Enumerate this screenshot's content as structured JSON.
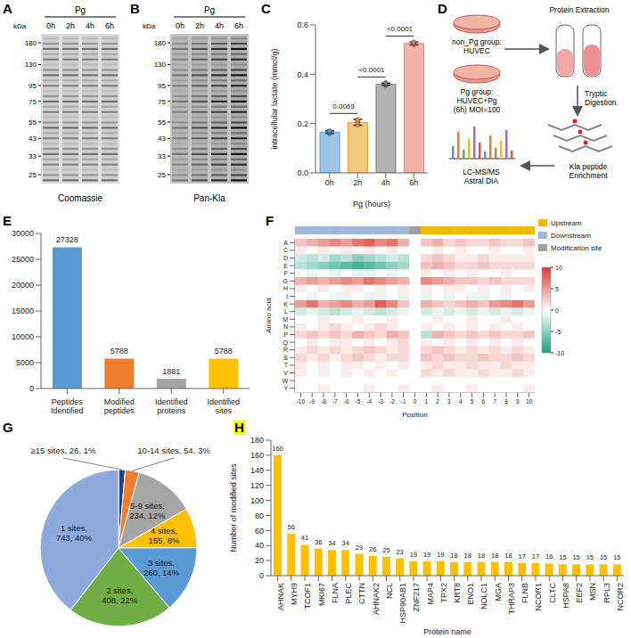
{
  "gels": [
    {
      "label": "A",
      "title": "Pg",
      "lanes": [
        "0h",
        "2h",
        "4h",
        "6h"
      ],
      "unit": "kDa",
      "markers": [
        180,
        130,
        95,
        75,
        55,
        43,
        33,
        25
      ],
      "caption": "Coomassie"
    },
    {
      "label": "B",
      "title": "Pg",
      "lanes": [
        "0h",
        "2h",
        "4h",
        "6h"
      ],
      "unit": "kDa",
      "markers": [
        180,
        130,
        95,
        75,
        55,
        43,
        33,
        25
      ],
      "caption": "Pan-Kla"
    }
  ],
  "diagram": {
    "label": "D",
    "nodes": [
      {
        "lines": [
          "non_Pg group:",
          "HUVEC"
        ]
      },
      {
        "lines": [
          "Pg group:",
          "HUVEC+Pg",
          "(6h) MOI=100"
        ]
      },
      {
        "lines": [
          "Protein Extraction"
        ]
      },
      {
        "lines": [
          "Tryptic",
          "Digestion"
        ]
      },
      {
        "lines": [
          "Kla peptide",
          "Enrichment"
        ]
      },
      {
        "lines": [
          "LC-MS/MS",
          "Astral DIA"
        ]
      }
    ]
  },
  "chart_data": [
    {
      "label": "C",
      "type": "bar",
      "categories": [
        "0h",
        "2h",
        "4h",
        "6h"
      ],
      "values": [
        0.165,
        0.205,
        0.36,
        0.525
      ],
      "error": [
        0.005,
        0.012,
        0.004,
        0.006
      ],
      "points": [
        [
          0.16,
          0.165,
          0.17
        ],
        [
          0.195,
          0.205,
          0.215
        ],
        [
          0.355,
          0.36,
          0.365
        ],
        [
          0.52,
          0.525,
          0.53
        ]
      ],
      "colors": [
        "#5b9bd5",
        "#f0a030",
        "#808080",
        "#f08070"
      ],
      "ylim": [
        0,
        0.6
      ],
      "yticks": [
        {
          "value": 0,
          "label": "0.0"
        },
        0.2,
        0.4,
        0.6
      ],
      "y_label": "intracellular lactate (mmol/g)",
      "x_label": "Pg (hours)",
      "comparisons": [
        {
          "pair": [
            "0h",
            "2h"
          ],
          "label": "0.0069"
        },
        {
          "pair": [
            "2h",
            "4h"
          ],
          "label": "<0.0001"
        },
        {
          "pair": [
            "4h",
            "6h"
          ],
          "label": "<0.0001"
        }
      ]
    },
    {
      "label": "E",
      "type": "bar",
      "categories": [
        "Peptides Identified",
        "Modified peptides",
        "Identified proteins",
        "Identified sites"
      ],
      "values": [
        27328,
        5788,
        1881,
        5788
      ],
      "colors": [
        "#5b9bd5",
        "#ed7d31",
        "#a5a5a5",
        "#ffc000"
      ],
      "ylim": [
        0,
        30000
      ],
      "yticks": [
        0,
        5000,
        10000,
        15000,
        20000,
        25000,
        30000
      ],
      "data_labels": true
    },
    {
      "label": "F",
      "type": "heatmap",
      "x": [
        -10,
        -9,
        -8,
        -7,
        -6,
        -5,
        -4,
        -3,
        -2,
        -1,
        0,
        1,
        2,
        3,
        4,
        5,
        6,
        7,
        8,
        9,
        10
      ],
      "xlim": [
        -10.5,
        10.5
      ],
      "xticks": [
        -10,
        -9,
        -8,
        -7,
        -6,
        -5,
        -4,
        -3,
        -2,
        -1,
        0,
        1,
        2,
        3,
        4,
        5,
        6,
        7,
        8,
        9,
        10
      ],
      "categories": [
        "A",
        "C",
        "D",
        "E",
        "F",
        "G",
        "H",
        "I",
        "K",
        "L",
        "M",
        "N",
        "P",
        "Q",
        "R",
        "S",
        "T",
        "V",
        "W",
        "Y"
      ],
      "cells": [
        [
          3,
          4,
          5,
          6,
          5,
          7,
          8,
          6,
          7,
          4,
          0,
          3,
          4,
          2,
          3,
          2,
          2,
          3,
          2,
          2,
          3
        ],
        [
          1,
          0,
          1,
          0,
          1,
          0,
          1,
          0,
          1,
          0,
          0,
          0,
          1,
          0,
          1,
          0,
          0,
          1,
          0,
          0,
          1
        ],
        [
          -2,
          -3,
          -2,
          -4,
          -3,
          -5,
          -4,
          -3,
          -2,
          -3,
          0,
          2,
          3,
          2,
          1,
          1,
          2,
          1,
          1,
          1,
          1
        ],
        [
          -3,
          -4,
          -5,
          -6,
          -7,
          -8,
          -7,
          -6,
          -5,
          -4,
          0,
          3,
          4,
          3,
          2,
          2,
          3,
          2,
          2,
          2,
          2
        ],
        [
          0,
          -1,
          0,
          -1,
          0,
          -1,
          -1,
          0,
          -1,
          0,
          0,
          1,
          0,
          1,
          0,
          1,
          0,
          0,
          1,
          0,
          0
        ],
        [
          4,
          5,
          4,
          5,
          6,
          5,
          7,
          6,
          5,
          4,
          0,
          6,
          5,
          4,
          3,
          3,
          2,
          3,
          2,
          2,
          2
        ],
        [
          1,
          0,
          1,
          0,
          1,
          1,
          0,
          1,
          0,
          1,
          0,
          1,
          0,
          1,
          1,
          0,
          1,
          0,
          1,
          0,
          1
        ],
        [
          0,
          -1,
          0,
          -1,
          -1,
          0,
          -1,
          -1,
          0,
          -1,
          0,
          -1,
          0,
          -1,
          0,
          -1,
          -1,
          0,
          -1,
          0,
          0
        ],
        [
          5,
          7,
          4,
          5,
          6,
          4,
          5,
          8,
          6,
          3,
          0,
          4,
          3,
          2,
          3,
          4,
          3,
          5,
          6,
          7,
          5
        ],
        [
          -2,
          -1,
          -2,
          -3,
          -2,
          -1,
          -2,
          -3,
          -2,
          -1,
          0,
          -2,
          -1,
          -2,
          -1,
          -2,
          -1,
          -2,
          -1,
          -2,
          -1
        ],
        [
          0,
          0,
          1,
          0,
          0,
          1,
          0,
          0,
          1,
          0,
          0,
          0,
          1,
          0,
          0,
          1,
          0,
          0,
          1,
          0,
          0
        ],
        [
          1,
          0,
          1,
          2,
          1,
          0,
          1,
          2,
          1,
          0,
          0,
          1,
          0,
          1,
          0,
          1,
          0,
          1,
          0,
          1,
          0
        ],
        [
          2,
          3,
          2,
          3,
          2,
          4,
          3,
          2,
          4,
          3,
          0,
          -3,
          4,
          3,
          2,
          3,
          2,
          3,
          2,
          2,
          3
        ],
        [
          0,
          1,
          0,
          1,
          1,
          0,
          1,
          0,
          1,
          2,
          0,
          1,
          0,
          1,
          0,
          1,
          0,
          1,
          0,
          1,
          0
        ],
        [
          1,
          2,
          1,
          2,
          1,
          2,
          3,
          2,
          1,
          2,
          0,
          2,
          3,
          2,
          1,
          2,
          1,
          2,
          1,
          2,
          1
        ],
        [
          2,
          1,
          2,
          1,
          2,
          3,
          2,
          1,
          2,
          2,
          0,
          3,
          2,
          3,
          2,
          2,
          3,
          2,
          2,
          3,
          2
        ],
        [
          1,
          0,
          1,
          0,
          1,
          1,
          0,
          1,
          0,
          1,
          0,
          1,
          2,
          1,
          1,
          2,
          1,
          1,
          2,
          1,
          1
        ],
        [
          1,
          0,
          1,
          0,
          1,
          0,
          1,
          0,
          1,
          0,
          0,
          2,
          1,
          2,
          1,
          1,
          2,
          1,
          1,
          2,
          1
        ],
        [
          0,
          0,
          0,
          0,
          0,
          0,
          0,
          0,
          0,
          0,
          0,
          0,
          0,
          0,
          0,
          0,
          0,
          0,
          0,
          0,
          0
        ],
        [
          0,
          0,
          1,
          0,
          0,
          0,
          1,
          0,
          0,
          1,
          0,
          0,
          1,
          0,
          0,
          1,
          0,
          0,
          0,
          0,
          1
        ]
      ],
      "colorbar": {
        "range": [
          -10,
          10
        ],
        "ticks": [
          -10,
          -5,
          0,
          5,
          10
        ]
      },
      "x_label": "Position",
      "y_label": "Amino acid",
      "series": [
        {
          "name": "Upstream",
          "color": "#f5b800"
        },
        {
          "name": "Downstream",
          "color": "#9fb7d9"
        },
        {
          "name": "Modification site",
          "color": "#a0a0a0"
        }
      ]
    },
    {
      "label": "G",
      "type": "pie",
      "categories": [
        "≥15 sites",
        "10-14 sites",
        "5-9 sites",
        "4 sites",
        "3 sites",
        "2 sites",
        "1 sites"
      ],
      "values": [
        26,
        54,
        234,
        155,
        260,
        408,
        743
      ],
      "value_labels": [
        "≥15 sites, 26, 1%",
        "10-14 sites, 54, 3%",
        "5-9 sites, 234, 12%",
        "4 sites, 155, 8%",
        "3 sites, 260, 14%",
        "2 sites, 408, 22%",
        "1 sites, 743, 40%"
      ],
      "colors": [
        "#264478",
        "#ed7d31",
        "#a5a5a5",
        "#ffc000",
        "#5b9bd5",
        "#70ad47",
        "#8faadc"
      ]
    },
    {
      "label": "H",
      "type": "bar",
      "categories": [
        "AHNAK",
        "MYH9",
        "TCOF1",
        "MKI67",
        "FLNA",
        "PLEC",
        "CTTN",
        "AHNAK2",
        "NCL",
        "HSP90AB1",
        "ZNF217",
        "MAP4",
        "TPX2",
        "KRT8",
        "ENO1",
        "NOLC1",
        "MGA",
        "THRAP3",
        "FLNB",
        "NCOR1",
        "CLTC",
        "HSPA8",
        "EEF2",
        "MSN",
        "RPL3",
        "NCOR2"
      ],
      "values": [
        160,
        56,
        41,
        36,
        34,
        34,
        29,
        26,
        25,
        23,
        19,
        19,
        19,
        18,
        18,
        18,
        18,
        18,
        17,
        17,
        16,
        15,
        15,
        15,
        15,
        15
      ],
      "color": "#ffc000",
      "ylim": [
        0,
        180
      ],
      "yticks": [
        0,
        20,
        40,
        60,
        80,
        100,
        120,
        140,
        160,
        180
      ],
      "data_labels": true,
      "x_label": "Protein name",
      "y_label": "Number of modified sites"
    }
  ]
}
